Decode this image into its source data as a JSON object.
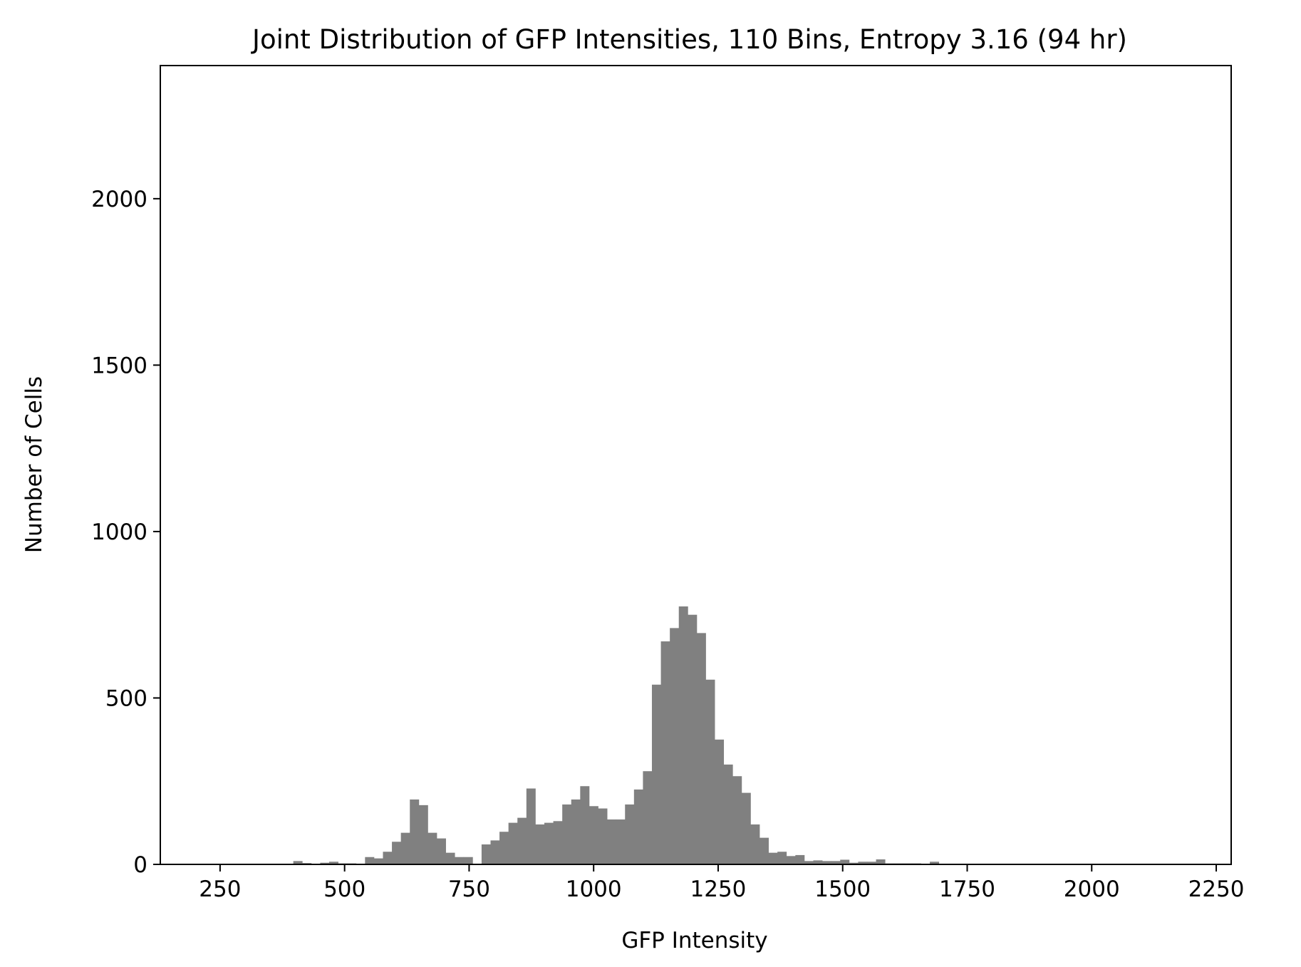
{
  "chart_data": {
    "type": "bar",
    "title": "Joint Distribution of GFP Intensities, 110 Bins, Entropy 3.16 (94 hr)",
    "xlabel": "GFP Intensity",
    "ylabel": "Number of Cells",
    "xlim": [
      130,
      2280
    ],
    "ylim": [
      0,
      2400
    ],
    "xticks": [
      250,
      500,
      750,
      1000,
      1250,
      1500,
      1750,
      2000,
      2250
    ],
    "yticks": [
      0,
      500,
      1000,
      1500,
      2000
    ],
    "xtick_labels": [
      "250",
      "500",
      "750",
      "1000",
      "1250",
      "1500",
      "1750",
      "2000",
      "2250"
    ],
    "ytick_labels": [
      "0",
      "500",
      "1000",
      "1500",
      "2000"
    ],
    "grid": false,
    "bar_color": "#808080",
    "bin_start": 217,
    "bin_width": 18,
    "values": [
      0,
      0,
      0,
      0,
      0,
      0,
      0,
      0,
      0,
      2,
      10,
      4,
      2,
      5,
      8,
      3,
      3,
      2,
      22,
      18,
      38,
      68,
      95,
      195,
      178,
      95,
      78,
      35,
      22,
      22,
      2,
      60,
      72,
      98,
      125,
      140,
      228,
      120,
      125,
      130,
      180,
      195,
      235,
      175,
      168,
      135,
      135,
      180,
      225,
      280,
      540,
      670,
      710,
      775,
      750,
      695,
      555,
      375,
      300,
      265,
      215,
      120,
      80,
      35,
      38,
      25,
      28,
      10,
      12,
      10,
      10,
      14,
      5,
      8,
      8,
      15,
      3,
      3,
      3,
      3,
      2,
      8,
      2,
      2,
      2,
      2,
      2,
      2,
      2,
      0,
      0,
      0,
      0,
      0,
      0,
      0,
      0,
      0,
      0,
      0,
      0,
      0,
      0,
      0,
      0,
      0,
      0,
      0,
      0,
      0
    ]
  }
}
